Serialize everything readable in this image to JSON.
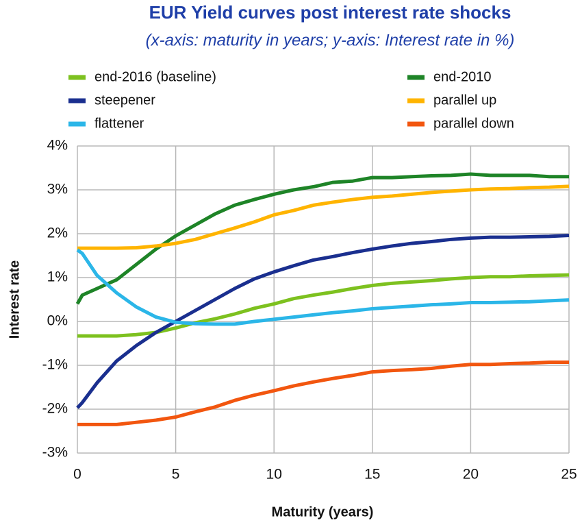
{
  "chart_data": {
    "type": "line",
    "title": "EUR Yield curves post interest rate shocks",
    "subtitle": "(x-axis: maturity in years; y-axis: Interest rate in %)",
    "x_label": "Maturity (years)",
    "y_label": "Interest rate",
    "x": [
      0,
      0.25,
      1,
      2,
      3,
      4,
      5,
      6,
      7,
      8,
      9,
      10,
      11,
      12,
      13,
      14,
      15,
      16,
      17,
      18,
      19,
      20,
      21,
      22,
      23,
      24,
      25
    ],
    "series": [
      {
        "name": "end-2016 (baseline)",
        "color": "#7dc11f",
        "values": [
          -0.33,
          -0.33,
          -0.33,
          -0.33,
          -0.3,
          -0.25,
          -0.15,
          -0.03,
          0.06,
          0.17,
          0.3,
          0.4,
          0.52,
          0.6,
          0.67,
          0.75,
          0.82,
          0.87,
          0.9,
          0.93,
          0.97,
          1.0,
          1.02,
          1.02,
          1.04,
          1.05,
          1.06
        ]
      },
      {
        "name": "end-2010",
        "color": "#1e8427",
        "values": [
          0.4,
          0.6,
          0.75,
          0.95,
          1.3,
          1.65,
          1.95,
          2.2,
          2.45,
          2.65,
          2.78,
          2.9,
          3.0,
          3.07,
          3.17,
          3.2,
          3.28,
          3.28,
          3.3,
          3.32,
          3.33,
          3.36,
          3.33,
          3.33,
          3.33,
          3.3,
          3.3
        ]
      },
      {
        "name": "steepener",
        "color": "#1a2f8f",
        "values": [
          -1.97,
          -1.85,
          -1.4,
          -0.9,
          -0.55,
          -0.25,
          0.0,
          0.25,
          0.5,
          0.75,
          0.97,
          1.13,
          1.27,
          1.4,
          1.48,
          1.57,
          1.65,
          1.72,
          1.78,
          1.82,
          1.87,
          1.9,
          1.92,
          1.92,
          1.93,
          1.94,
          1.96
        ]
      },
      {
        "name": "parallel up",
        "color": "#ffb400",
        "values": [
          1.67,
          1.67,
          1.67,
          1.67,
          1.68,
          1.72,
          1.78,
          1.87,
          2.0,
          2.13,
          2.27,
          2.43,
          2.53,
          2.65,
          2.72,
          2.78,
          2.83,
          2.86,
          2.9,
          2.94,
          2.97,
          3.0,
          3.02,
          3.03,
          3.05,
          3.06,
          3.08
        ]
      },
      {
        "name": "flattener",
        "color": "#2bb6e8",
        "values": [
          1.63,
          1.55,
          1.05,
          0.65,
          0.33,
          0.1,
          -0.02,
          -0.05,
          -0.06,
          -0.06,
          0.0,
          0.05,
          0.1,
          0.15,
          0.2,
          0.24,
          0.29,
          0.32,
          0.35,
          0.38,
          0.4,
          0.43,
          0.43,
          0.44,
          0.45,
          0.47,
          0.49
        ]
      },
      {
        "name": "parallel down",
        "color": "#f2560f",
        "values": [
          -2.35,
          -2.35,
          -2.35,
          -2.35,
          -2.3,
          -2.25,
          -2.18,
          -2.06,
          -1.95,
          -1.8,
          -1.68,
          -1.58,
          -1.47,
          -1.38,
          -1.3,
          -1.23,
          -1.15,
          -1.12,
          -1.1,
          -1.07,
          -1.02,
          -0.98,
          -0.98,
          -0.96,
          -0.95,
          -0.93,
          -0.93
        ]
      }
    ],
    "xlim": [
      0,
      25
    ],
    "xticks": [
      0,
      5,
      10,
      15,
      20,
      25
    ],
    "ylim": [
      -3,
      4
    ],
    "yticks": [
      {
        "value": -3,
        "label": "-3%"
      },
      {
        "value": -2,
        "label": "-2%"
      },
      {
        "value": -1,
        "label": "-1%"
      },
      {
        "value": 0,
        "label": "0%"
      },
      {
        "value": 1,
        "label": "1%"
      },
      {
        "value": 2,
        "label": "2%"
      },
      {
        "value": 3,
        "label": "3%"
      },
      {
        "value": 4,
        "label": "4%"
      }
    ],
    "grid": true
  }
}
